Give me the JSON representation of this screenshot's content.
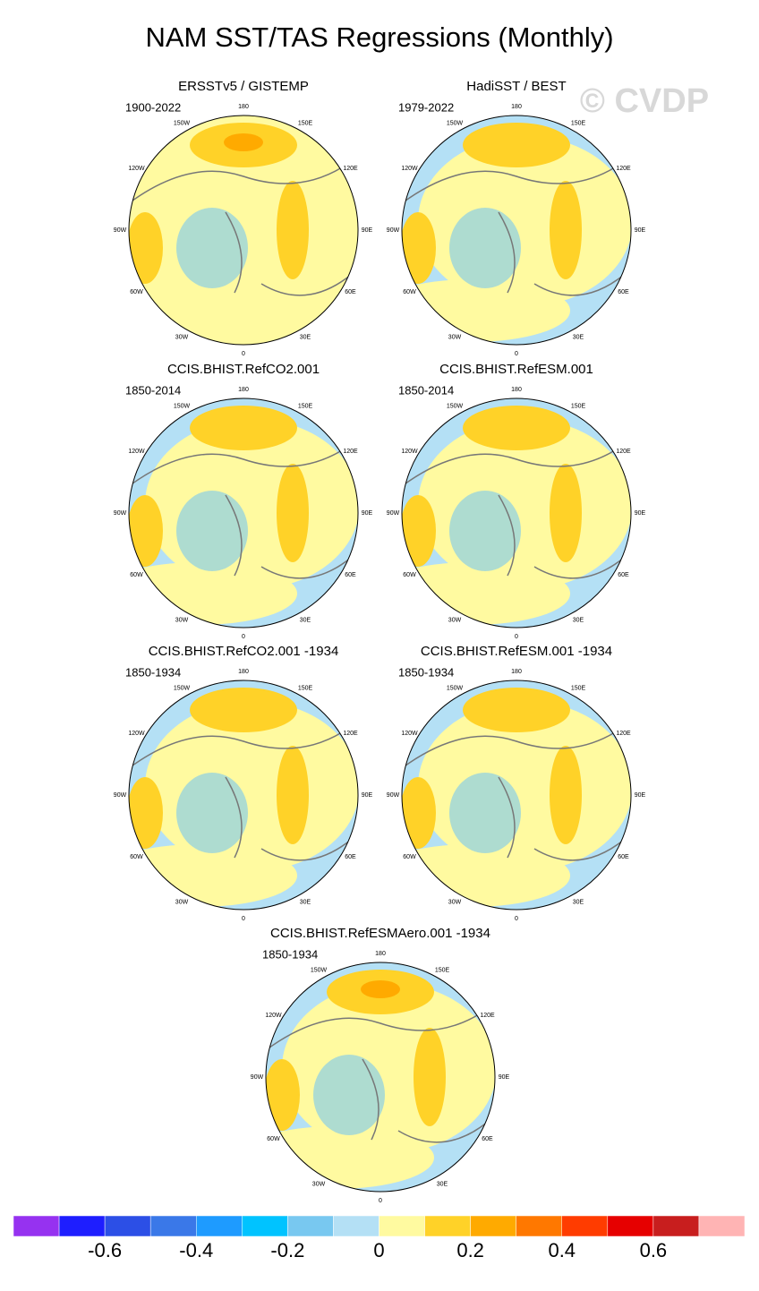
{
  "title": "NAM SST/TAS Regressions (Monthly)",
  "watermark": "© CVDP",
  "panels": [
    {
      "title": "ERSSTv5 / GISTEMP",
      "period": "1900-2022"
    },
    {
      "title": "HadiSST / BEST",
      "period": "1979-2022"
    },
    {
      "title": "CCIS.BHIST.RefCO2.001",
      "period": "1850-2014"
    },
    {
      "title": "CCIS.BHIST.RefESM.001",
      "period": "1850-2014"
    },
    {
      "title": "CCIS.BHIST.RefCO2.001 -1934",
      "period": "1850-1934"
    },
    {
      "title": "CCIS.BHIST.RefESM.001 -1934",
      "period": "1850-1934"
    },
    {
      "title": "CCIS.BHIST.RefESMAero.001 -1934",
      "period": "1850-1934"
    }
  ],
  "longitude_labels": [
    "180",
    "150E",
    "120E",
    "90E",
    "60E",
    "30E",
    "0",
    "30W",
    "60W",
    "90W",
    "120W",
    "150W"
  ],
  "colorbar": {
    "colors": [
      "#9632f0",
      "#1e1eff",
      "#2c4fe6",
      "#3a78e8",
      "#1e9bff",
      "#00c3ff",
      "#78c8f0",
      "#b4e0f5",
      "#fffaa0",
      "#ffd228",
      "#ffaa00",
      "#ff7800",
      "#ff3c00",
      "#e60000",
      "#c81e1e",
      "#ffb4b4"
    ],
    "xlim": [
      -0.8,
      0.8
    ],
    "ticks": [
      -0.6,
      -0.4,
      -0.2,
      0,
      0.2,
      0.4,
      0.6
    ]
  }
}
